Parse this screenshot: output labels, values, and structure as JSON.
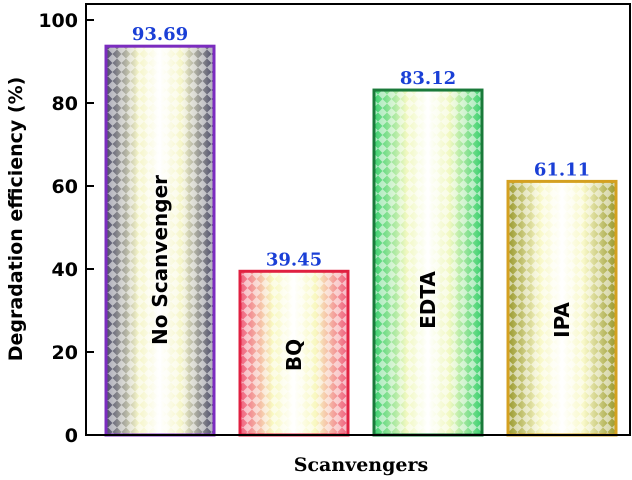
{
  "chart_data": {
    "type": "bar",
    "categories": [
      "No Scanvenger",
      "BQ",
      "EDTA",
      "IPA"
    ],
    "values": [
      93.69,
      39.45,
      83.12,
      61.11
    ],
    "value_labels": [
      "93.69",
      "39.45",
      "83.12",
      "61.11"
    ],
    "title": "",
    "xlabel": "Scanvengers",
    "ylabel": "Degradation efficiency (%)",
    "ylim": [
      0,
      100
    ],
    "yticks": [
      "0",
      "20",
      "40",
      "60",
      "80",
      "100"
    ],
    "grid": false,
    "legend": "none",
    "bar_styles": [
      {
        "edge": "#7b2cbf",
        "dark": "#4a4a6a",
        "light": "#f5f5c8"
      },
      {
        "edge": "#e02040",
        "dark": "#f06080",
        "light": "#f8f8c0"
      },
      {
        "edge": "#1a7a3a",
        "dark": "#3ad070",
        "light": "#f0f8c0"
      },
      {
        "edge": "#d4a020",
        "dark": "#9a9a30",
        "light": "#f8f8c8"
      }
    ]
  }
}
